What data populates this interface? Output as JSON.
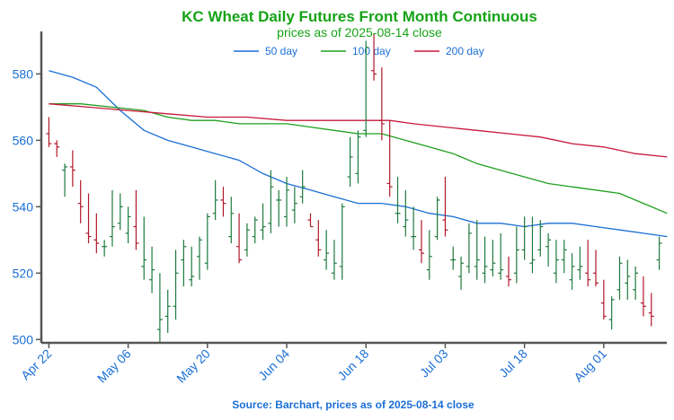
{
  "chart_data": {
    "type": "ohlc",
    "title": "KC Wheat Daily Futures Front Month Continuous",
    "subtitle": "prices as of 2025-08-14 close",
    "source": "Source: Barchart, prices as of 2025-08-14 close",
    "ylim": [
      499,
      592
    ],
    "yticks": [
      500,
      520,
      540,
      560,
      580
    ],
    "xticks": [
      {
        "day": 0,
        "label": "Apr 22"
      },
      {
        "day": 10,
        "label": "May 06"
      },
      {
        "day": 20,
        "label": "May 20"
      },
      {
        "day": 30,
        "label": "Jun 04"
      },
      {
        "day": 40,
        "label": "Jun 18"
      },
      {
        "day": 50,
        "label": "Jul 03"
      },
      {
        "day": 60,
        "label": "Jul 18"
      },
      {
        "day": 70,
        "label": "Aug 01"
      }
    ],
    "grid": false,
    "legend_position": "top-center",
    "colors": {
      "title": "#16a316",
      "axis_text": "#1a6fd6",
      "up": "#1e7a3e",
      "down": "#b0182a"
    },
    "candles": [
      [
        567,
        558,
        562,
        559
      ],
      [
        560,
        555,
        559,
        558
      ],
      [
        553,
        543,
        551,
        552
      ],
      [
        557,
        546,
        552,
        551
      ],
      [
        548,
        535,
        541,
        540
      ],
      [
        544,
        529,
        532,
        531
      ],
      [
        538,
        526,
        530,
        529
      ],
      [
        530,
        525,
        528,
        528
      ],
      [
        545,
        528,
        531,
        534
      ],
      [
        544,
        533,
        535,
        540
      ],
      [
        540,
        529,
        532,
        537
      ],
      [
        545,
        527,
        534,
        529
      ],
      [
        537,
        518,
        522,
        524
      ],
      [
        528,
        514,
        518,
        521
      ],
      [
        520,
        499,
        503,
        506
      ],
      [
        515,
        502,
        507,
        510
      ],
      [
        527,
        506,
        510,
        520
      ],
      [
        530,
        516,
        524,
        528
      ],
      [
        528,
        516,
        518,
        519
      ],
      [
        531,
        518,
        525,
        530
      ],
      [
        538,
        521,
        523,
        537
      ],
      [
        548,
        536,
        538,
        542
      ],
      [
        546,
        537,
        542,
        541
      ],
      [
        543,
        529,
        531,
        538
      ],
      [
        538,
        523,
        528,
        524
      ],
      [
        535,
        525,
        527,
        533
      ],
      [
        537,
        529,
        531,
        536
      ],
      [
        541,
        530,
        533,
        534
      ],
      [
        551,
        532,
        535,
        546
      ],
      [
        545,
        534,
        542,
        542
      ],
      [
        549,
        534,
        537,
        545
      ],
      [
        546,
        535,
        539,
        541
      ],
      [
        551,
        541,
        543,
        546
      ],
      [
        538,
        534,
        536,
        534
      ],
      [
        536,
        525,
        530,
        527
      ],
      [
        533,
        521,
        524,
        526
      ],
      [
        530,
        518,
        520,
        523
      ],
      [
        541,
        518,
        522,
        540
      ],
      [
        561,
        546,
        549,
        555
      ],
      [
        563,
        547,
        550,
        561
      ],
      [
        590,
        561,
        563,
        588
      ],
      [
        592,
        578,
        581,
        580
      ],
      [
        582,
        560,
        566,
        565
      ],
      [
        566,
        543,
        547,
        546
      ],
      [
        549,
        535,
        538,
        538
      ],
      [
        545,
        531,
        534,
        536
      ],
      [
        540,
        527,
        531,
        531
      ],
      [
        536,
        523,
        527,
        526
      ],
      [
        533,
        518,
        521,
        525
      ],
      [
        543,
        530,
        531,
        542
      ],
      [
        549,
        531,
        536,
        533
      ],
      [
        528,
        521,
        524,
        524
      ],
      [
        525,
        515,
        519,
        523
      ],
      [
        535,
        520,
        522,
        532
      ],
      [
        536,
        518,
        522,
        524
      ],
      [
        531,
        517,
        520,
        522
      ],
      [
        530,
        519,
        521,
        523
      ],
      [
        532,
        518,
        520,
        521
      ],
      [
        525,
        516,
        519,
        518
      ],
      [
        534,
        517,
        520,
        527
      ],
      [
        537,
        524,
        527,
        534
      ],
      [
        537,
        520,
        523,
        524
      ],
      [
        536,
        525,
        527,
        534
      ],
      [
        532,
        522,
        528,
        530
      ],
      [
        530,
        517,
        520,
        524
      ],
      [
        530,
        520,
        524,
        527
      ],
      [
        526,
        515,
        518,
        522
      ],
      [
        528,
        518,
        521,
        522
      ],
      [
        530,
        516,
        520,
        518
      ],
      [
        527,
        516,
        520,
        517
      ],
      [
        518,
        506,
        511,
        507
      ],
      [
        513,
        503,
        506,
        512
      ],
      [
        525,
        512,
        515,
        523
      ],
      [
        524,
        512,
        517,
        519
      ],
      [
        522,
        512,
        515,
        520
      ],
      [
        519,
        507,
        511,
        510
      ],
      [
        514,
        504,
        508,
        507
      ],
      [
        531,
        521,
        524,
        529
      ]
    ],
    "series": [
      {
        "name": "50 day",
        "color": "#1a6fd6",
        "points": [
          [
            0,
            581
          ],
          [
            3,
            579
          ],
          [
            6,
            576
          ],
          [
            9,
            569
          ],
          [
            12,
            563
          ],
          [
            15,
            560
          ],
          [
            18,
            558
          ],
          [
            21,
            556
          ],
          [
            24,
            554
          ],
          [
            27,
            550
          ],
          [
            30,
            547
          ],
          [
            33,
            545
          ],
          [
            36,
            543
          ],
          [
            39,
            541
          ],
          [
            42,
            541
          ],
          [
            45,
            540
          ],
          [
            48,
            538
          ],
          [
            51,
            537
          ],
          [
            54,
            535
          ],
          [
            57,
            535
          ],
          [
            60,
            534
          ],
          [
            63,
            535
          ],
          [
            66,
            535
          ],
          [
            69,
            534
          ],
          [
            72,
            533
          ],
          [
            75,
            532
          ],
          [
            78,
            531
          ]
        ]
      },
      {
        "name": "100 day",
        "color": "#1ea01e",
        "points": [
          [
            0,
            571
          ],
          [
            4,
            571
          ],
          [
            8,
            570
          ],
          [
            12,
            569
          ],
          [
            15,
            567
          ],
          [
            18,
            566
          ],
          [
            21,
            566
          ],
          [
            24,
            565
          ],
          [
            27,
            565
          ],
          [
            30,
            565
          ],
          [
            33,
            564
          ],
          [
            36,
            563
          ],
          [
            39,
            562
          ],
          [
            41,
            562
          ],
          [
            42,
            562
          ],
          [
            45,
            560
          ],
          [
            48,
            558
          ],
          [
            51,
            556
          ],
          [
            54,
            553
          ],
          [
            57,
            551
          ],
          [
            60,
            549
          ],
          [
            63,
            547
          ],
          [
            66,
            546
          ],
          [
            69,
            545
          ],
          [
            72,
            544
          ],
          [
            75,
            541
          ],
          [
            78,
            538
          ]
        ]
      },
      {
        "name": "200 day",
        "color": "#c8183a",
        "points": [
          [
            0,
            571
          ],
          [
            5,
            570
          ],
          [
            10,
            569
          ],
          [
            15,
            568
          ],
          [
            20,
            567
          ],
          [
            25,
            567
          ],
          [
            30,
            566
          ],
          [
            35,
            566
          ],
          [
            40,
            566
          ],
          [
            43,
            566
          ],
          [
            46,
            565
          ],
          [
            50,
            564
          ],
          [
            54,
            563
          ],
          [
            58,
            562
          ],
          [
            62,
            561
          ],
          [
            66,
            559
          ],
          [
            70,
            558
          ],
          [
            74,
            556
          ],
          [
            78,
            555
          ]
        ]
      }
    ]
  }
}
